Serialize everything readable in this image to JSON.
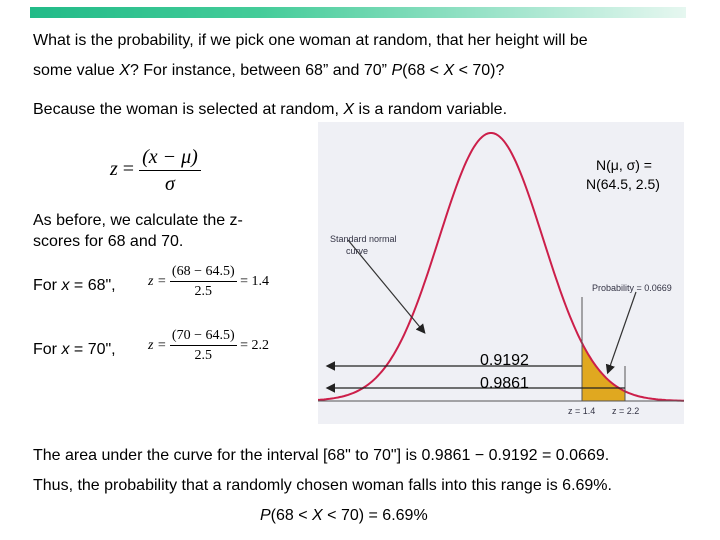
{
  "slide": {
    "q_line1": "What is the probability, if we pick one woman at random, that her height will be",
    "q_line2_a": "some value ",
    "q_line2_X": "X",
    "q_line2_b": "?  For instance, between 68” and 70” ",
    "q_line2_P": "P",
    "q_line2_c": "(68 < ",
    "q_line2_X2": "X",
    "q_line2_d": " < 70)?",
    "random_line_a": "Because the woman is selected at random, ",
    "random_line_X": "X",
    "random_line_b": " is a random variable.",
    "zformula": {
      "lhs": "z",
      "eq": "=",
      "num": "(x − μ)",
      "den": "σ"
    },
    "as_before_1": "As before, we calculate the z-",
    "as_before_2": "scores for 68 and 70.",
    "for_x68_a": "For ",
    "for_x68_x": "x",
    "for_x68_b": " = 68\",",
    "for_x70_a": "For ",
    "for_x70_x": "x",
    "for_x70_b": " = 70\",",
    "eq68": {
      "lhs": "z =",
      "num": "(68 − 64.5)",
      "den": "2.5",
      "rhs": "= 1.4"
    },
    "eq70": {
      "lhs": "z =",
      "num": "(70 − 64.5)",
      "den": "2.5",
      "rhs": "= 2.2"
    },
    "area_line": "The area under the curve for the interval [68\" to 70\"] is 0.9861 − 0.9192 = 0.0669.",
    "thus_line": "Thus, the probability that a randomly chosen woman falls into this range is 6.69%.",
    "final_P": "P",
    "final_a": "(68 < ",
    "final_X": "X",
    "final_b": " < 70) = 6.69%"
  },
  "figure": {
    "n_line1": "N(μ, σ) =",
    "n_line2": "N(64.5, 2.5)",
    "std_label_1": "Standard normal",
    "std_label_2": "curve",
    "prob_label": "Probability = 0.0669",
    "z_label_1": "z = 1.4",
    "z_label_2": "z = 2.2",
    "value_1": "0.9192",
    "value_2": "0.9861",
    "curve_color": "#cc1f4a",
    "shade_color": "#e0a820"
  }
}
